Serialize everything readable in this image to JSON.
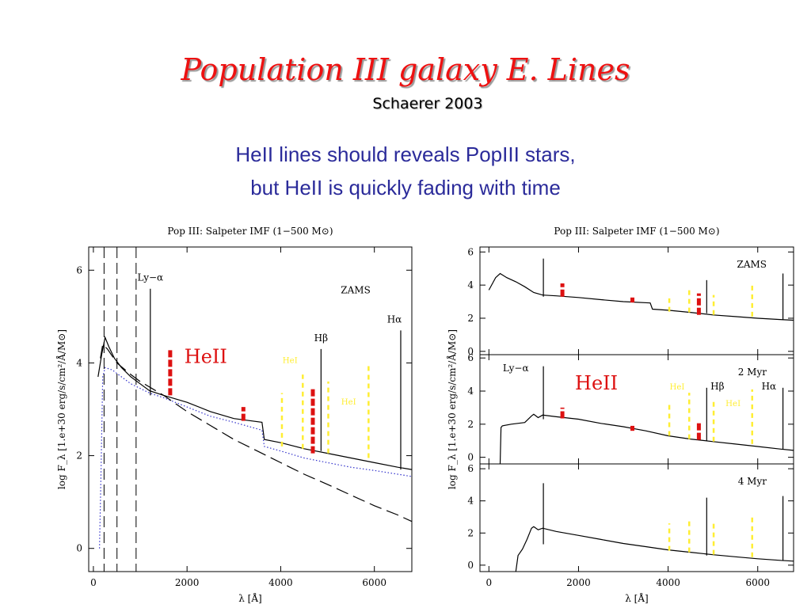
{
  "slide": {
    "title": "Population III galaxy E. Lines",
    "subtitle": "Schaerer  2003",
    "text_line1": "HeII lines should reveals PopIII stars,",
    "text_line2": "but HeII is quickly fading with time"
  },
  "colors": {
    "title": "#ee1111",
    "text": "#2b2b9a",
    "heii_marker": "#dd1111",
    "hei_marker": "#ffee33",
    "dotted_curve": "#3333cc",
    "axes": "#000000"
  },
  "chart_data": [
    {
      "type": "line",
      "title": "Pop III: Salpeter IMF (1−500 M⊙)",
      "xlabel": "λ  [Å]",
      "ylabel": "log F_λ  [1.e+30 erg/s/cm²/Å/M⊙]",
      "xlim": [
        -100,
        6800
      ],
      "ylim": [
        -0.5,
        6.5
      ],
      "xticks": [
        0,
        2000,
        4000,
        6000
      ],
      "yticks": [
        0,
        2,
        4,
        6
      ],
      "grid": false,
      "series": [
        {
          "style": "solid",
          "x": [
            100,
            180,
            250,
            330,
            450,
            600,
            800,
            1000,
            1200,
            1500,
            2000,
            2500,
            3000,
            3600,
            3650,
            4000,
            4500,
            5000,
            5500,
            6000,
            6500,
            6800
          ],
          "y": [
            3.7,
            4.2,
            4.55,
            4.35,
            4.1,
            3.9,
            3.7,
            3.55,
            3.4,
            3.3,
            3.15,
            2.95,
            2.8,
            2.72,
            2.35,
            2.28,
            2.15,
            2.05,
            1.95,
            1.85,
            1.75,
            1.7
          ]
        },
        {
          "style": "dotted",
          "x": [
            130,
            160,
            200,
            250,
            400,
            600,
            800,
            1000,
            1200,
            1500,
            2000,
            2500,
            3000,
            3600,
            3650,
            4000,
            4500,
            5000,
            5500,
            6000,
            6500,
            6800
          ],
          "y": [
            0.0,
            1.5,
            3.7,
            3.9,
            3.85,
            3.7,
            3.55,
            3.45,
            3.35,
            3.25,
            3.05,
            2.85,
            2.72,
            2.55,
            2.2,
            2.1,
            1.95,
            1.85,
            1.75,
            1.68,
            1.6,
            1.55
          ]
        },
        {
          "style": "dashed",
          "x": [
            150,
            200,
            300,
            500,
            800,
            1000,
            1500,
            2000,
            2500,
            3000,
            3500,
            4000,
            4500,
            5000,
            5500,
            6000,
            6500,
            6800
          ],
          "y": [
            4.1,
            4.4,
            4.3,
            4.0,
            3.75,
            3.6,
            3.3,
            2.95,
            2.65,
            2.35,
            2.1,
            1.85,
            1.6,
            1.38,
            1.15,
            0.92,
            0.72,
            0.58
          ]
        }
      ],
      "vlines_dashed": [
        228,
        504,
        912
      ],
      "lines": [
        {
          "label": "Ly−α",
          "x": 1216,
          "y0": 3.3,
          "y1": 5.6
        },
        {
          "label": "Hβ",
          "x": 4861,
          "y0": 2.1,
          "y1": 4.3
        },
        {
          "label": "Hα",
          "x": 6563,
          "y0": 1.7,
          "y1": 4.7
        }
      ],
      "heii": [
        {
          "x": 1640,
          "y0": 3.3,
          "y1": 4.3
        },
        {
          "x": 3203,
          "y0": 2.75,
          "y1": 3.05
        },
        {
          "x": 4686,
          "y0": 2.05,
          "y1": 3.45
        }
      ],
      "hei": [
        {
          "x": 4026,
          "y0": 2.2,
          "y1": 3.35
        },
        {
          "x": 4471,
          "y0": 2.15,
          "y1": 3.75
        },
        {
          "x": 5016,
          "y0": 2.05,
          "y1": 3.6
        },
        {
          "x": 5876,
          "y0": 1.95,
          "y1": 4.0
        }
      ],
      "annotations": [
        {
          "text": "ZAMS",
          "x": 5600,
          "y": 5.5
        },
        {
          "text": "HeII",
          "x": 2400,
          "y": 4.0,
          "color": "#dd1111"
        },
        {
          "text": "HeI",
          "x": 4200,
          "y": 4.0,
          "color": "#ffee33"
        },
        {
          "text": "HeI",
          "x": 5450,
          "y": 3.1,
          "color": "#ffee33"
        }
      ]
    },
    {
      "type": "line",
      "title": "Pop III: Salpeter IMF (1−500 M⊙)",
      "xlabel": "λ  [Å]",
      "ylabel": "log F_λ  [1.e+30 erg/s/cm²/Å/M⊙]",
      "xlim": [
        -200,
        6800
      ],
      "xticks": [
        0,
        2000,
        4000,
        6000
      ],
      "panels": [
        {
          "label": "ZAMS",
          "ylim": [
            -0.2,
            6.3
          ],
          "yticks": [
            0,
            2,
            4,
            6
          ],
          "series": [
            {
              "style": "solid",
              "x": [
                0,
                100,
                150,
                250,
                400,
                600,
                800,
                1000,
                1200,
                1500,
                2000,
                2500,
                3000,
                3600,
                3650,
                4000,
                4500,
                5000,
                5500,
                6000,
                6500,
                6800
              ],
              "y": [
                3.7,
                4.2,
                4.45,
                4.7,
                4.45,
                4.2,
                3.9,
                3.55,
                3.4,
                3.35,
                3.25,
                3.12,
                3.0,
                2.92,
                2.55,
                2.48,
                2.35,
                2.2,
                2.1,
                2.0,
                1.92,
                1.88
              ]
            }
          ],
          "lines": [
            {
              "x": 1216,
              "y0": 3.3,
              "y1": 5.6
            },
            {
              "x": 4861,
              "y0": 2.3,
              "y1": 4.3
            },
            {
              "x": 6563,
              "y0": 1.9,
              "y1": 4.7
            }
          ],
          "heii": [
            {
              "x": 1640,
              "y0": 3.3,
              "y1": 4.1
            },
            {
              "x": 3203,
              "y0": 2.95,
              "y1": 3.25
            },
            {
              "x": 4686,
              "y0": 2.2,
              "y1": 3.5
            }
          ],
          "hei": [
            {
              "x": 4026,
              "y0": 2.4,
              "y1": 3.2
            },
            {
              "x": 4471,
              "y0": 2.35,
              "y1": 3.8
            },
            {
              "x": 5016,
              "y0": 2.2,
              "y1": 3.4
            },
            {
              "x": 5876,
              "y0": 2.1,
              "y1": 4.1
            }
          ],
          "annotations": []
        },
        {
          "label": "2 Myr",
          "ylim": [
            -0.4,
            6.2
          ],
          "yticks": [
            0,
            2,
            4,
            6
          ],
          "series": [
            {
              "style": "solid",
              "x": [
                250,
                270,
                300,
                500,
                800,
                950,
                1000,
                1100,
                1200,
                1500,
                2000,
                2500,
                3000,
                3500,
                4000,
                4500,
                5000,
                5500,
                6000,
                6500,
                6800
              ],
              "y": [
                -0.4,
                1.8,
                1.9,
                2.0,
                2.1,
                2.5,
                2.6,
                2.4,
                2.55,
                2.45,
                2.3,
                2.05,
                1.85,
                1.6,
                1.3,
                1.1,
                0.95,
                0.8,
                0.65,
                0.5,
                0.42
              ]
            }
          ],
          "lines": [
            {
              "x": 1216,
              "y0": 2.3,
              "y1": 5.5
            },
            {
              "x": 4861,
              "y0": 1.0,
              "y1": 4.2
            },
            {
              "x": 6563,
              "y0": 0.5,
              "y1": 4.2
            }
          ],
          "heii": [
            {
              "x": 1640,
              "y0": 2.35,
              "y1": 3.0
            },
            {
              "x": 3203,
              "y0": 1.6,
              "y1": 1.9
            },
            {
              "x": 4686,
              "y0": 1.05,
              "y1": 2.1
            }
          ],
          "hei": [
            {
              "x": 4026,
              "y0": 1.3,
              "y1": 3.2
            },
            {
              "x": 4471,
              "y0": 1.1,
              "y1": 3.9
            },
            {
              "x": 5016,
              "y0": 0.95,
              "y1": 3.4
            },
            {
              "x": 5876,
              "y0": 0.8,
              "y1": 4.1
            }
          ],
          "annotations": [
            {
              "text": "Ly−α",
              "x": 600,
              "y": 5.2
            },
            {
              "text": "HeII",
              "x": 2400,
              "y": 4.1,
              "color": "#dd1111"
            },
            {
              "text": "HeI",
              "x": 4200,
              "y": 4.1,
              "color": "#ffee33"
            },
            {
              "text": "Hβ",
              "x": 5100,
              "y": 4.1
            },
            {
              "text": "Hα",
              "x": 6250,
              "y": 4.1
            },
            {
              "text": "HeI",
              "x": 5450,
              "y": 3.1,
              "color": "#ffee33"
            }
          ]
        },
        {
          "label": "4 Myr",
          "ylim": [
            -0.4,
            6.3
          ],
          "yticks": [
            0,
            2,
            4,
            6
          ],
          "series": [
            {
              "style": "solid",
              "x": [
                600,
                650,
                750,
                850,
                950,
                1000,
                1100,
                1200,
                1500,
                2000,
                2500,
                3000,
                3500,
                4000,
                4500,
                5000,
                5500,
                6000,
                6500,
                6800
              ],
              "y": [
                -0.4,
                0.6,
                1.0,
                1.6,
                2.3,
                2.4,
                2.2,
                2.3,
                2.1,
                1.85,
                1.6,
                1.35,
                1.15,
                0.95,
                0.8,
                0.65,
                0.52,
                0.4,
                0.3,
                0.25
              ]
            }
          ],
          "lines": [
            {
              "x": 1216,
              "y0": 1.3,
              "y1": 5.1
            },
            {
              "x": 4861,
              "y0": 0.6,
              "y1": 4.2
            },
            {
              "x": 6563,
              "y0": 0.3,
              "y1": 4.3
            }
          ],
          "heii": [],
          "hei": [
            {
              "x": 4026,
              "y0": 0.9,
              "y1": 2.6
            },
            {
              "x": 4471,
              "y0": 0.8,
              "y1": 2.9
            },
            {
              "x": 5016,
              "y0": 0.65,
              "y1": 2.7
            },
            {
              "x": 5876,
              "y0": 0.5,
              "y1": 3.2
            }
          ],
          "annotations": []
        }
      ]
    }
  ]
}
